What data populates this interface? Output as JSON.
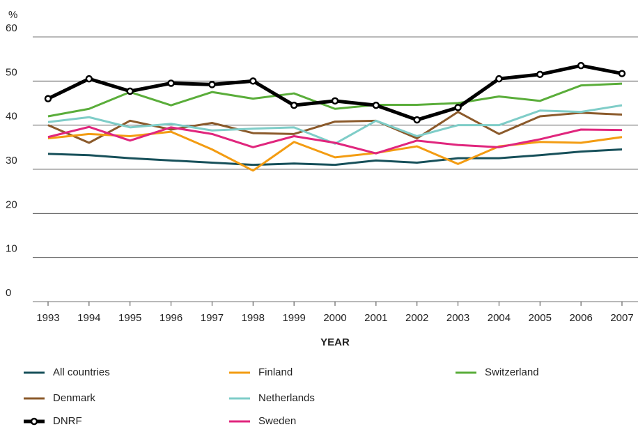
{
  "chart_data": {
    "type": "line",
    "y_label": "%",
    "x_label": "YEAR",
    "x": [
      1993,
      1994,
      1995,
      1996,
      1997,
      1998,
      1999,
      2000,
      2001,
      2002,
      2003,
      2004,
      2005,
      2006,
      2007
    ],
    "xlim": [
      1993,
      2007
    ],
    "xticks": [
      1993,
      1994,
      1995,
      1996,
      1997,
      1998,
      1999,
      2000,
      2001,
      2002,
      2003,
      2004,
      2005,
      2006,
      2007
    ],
    "ylim": [
      0,
      60
    ],
    "yticks": [
      0,
      10,
      20,
      30,
      40,
      50,
      60
    ],
    "grid": true,
    "series": [
      {
        "name": "All countries",
        "color": "#17505a",
        "values": [
          33.5,
          33.2,
          32.5,
          32,
          31.5,
          31,
          31.3,
          31,
          32,
          31.5,
          32.5,
          32.5,
          33.2,
          34,
          34.5
        ]
      },
      {
        "name": "Denmark",
        "color": "#8b5a2b",
        "values": [
          40,
          36,
          41,
          39,
          40.5,
          38.2,
          38,
          40.8,
          41,
          37,
          43,
          38,
          42,
          42.8,
          42.4
        ]
      },
      {
        "name": "DNRF",
        "color": "#000000",
        "markers": true,
        "values": [
          46,
          50.5,
          47.7,
          49.5,
          49.2,
          50,
          44.5,
          45.5,
          44.5,
          41.2,
          44,
          50.5,
          51.5,
          53.5,
          51.7
        ]
      },
      {
        "name": "Finland",
        "color": "#f39c12",
        "values": [
          37,
          38,
          37.5,
          38.5,
          34.5,
          29.7,
          36.2,
          32.7,
          33.7,
          35.2,
          31.2,
          35.2,
          36.2,
          36,
          37.3
        ]
      },
      {
        "name": "Netherlands",
        "color": "#7fcdc8",
        "values": [
          40.7,
          41.8,
          39.5,
          40.3,
          38.8,
          39.2,
          39.5,
          35.8,
          41,
          37.5,
          40,
          40,
          43.3,
          43,
          44.5
        ]
      },
      {
        "name": "Sweden",
        "color": "#e0267d",
        "values": [
          37.3,
          39.6,
          36.5,
          39.5,
          38,
          35,
          37.5,
          36,
          33.6,
          36.5,
          35.5,
          35,
          36.8,
          39,
          38.9
        ]
      },
      {
        "name": "Switzerland",
        "color": "#5aad3a",
        "values": [
          42,
          43.7,
          47.5,
          44.5,
          47.5,
          46,
          47.2,
          43.7,
          44.6,
          44.6,
          45,
          46.5,
          45.5,
          49,
          49.4
        ]
      }
    ]
  }
}
